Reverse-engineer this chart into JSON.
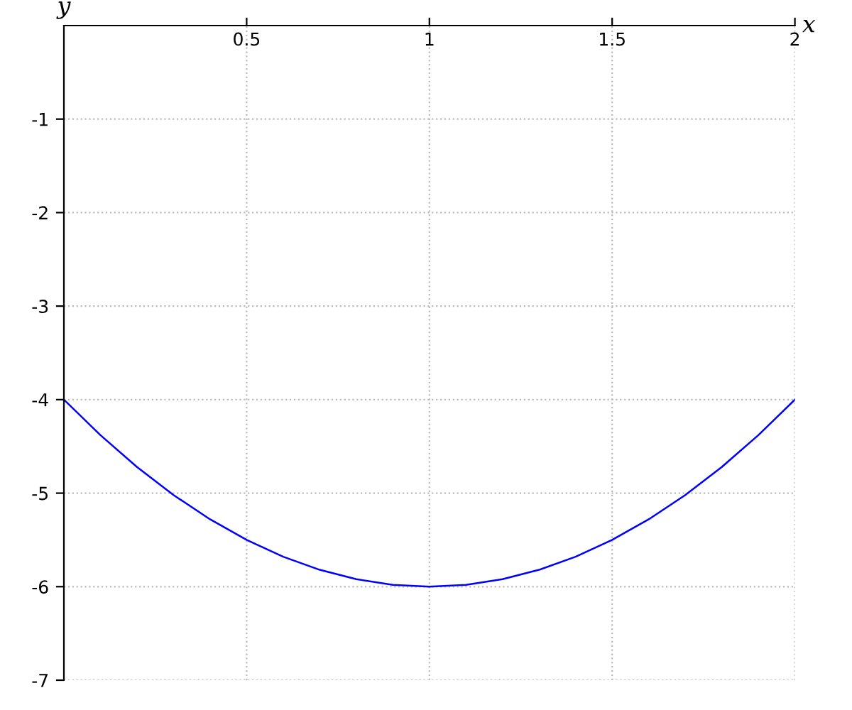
{
  "chart_data": {
    "type": "line",
    "xlabel": "x",
    "ylabel": "y",
    "x": [
      0,
      0.1,
      0.2,
      0.3,
      0.4,
      0.5,
      0.6,
      0.7,
      0.8,
      0.9,
      1,
      1.1,
      1.2,
      1.3,
      1.4,
      1.5,
      1.6,
      1.7,
      1.8,
      1.9,
      2
    ],
    "series": [
      {
        "color": "#0000ff",
        "values": [
          -4,
          -4.38,
          -4.72,
          -5.02,
          -5.28,
          -5.5,
          -5.68,
          -5.82,
          -5.92,
          -5.98,
          -6,
          -5.98,
          -5.92,
          -5.82,
          -5.68,
          -5.5,
          -5.28,
          -5.02,
          -4.72,
          -4.38,
          -4
        ]
      }
    ],
    "xlim": [
      0,
      2
    ],
    "ylim": [
      -7,
      0
    ],
    "xticks": [
      0.5,
      1,
      1.5,
      2
    ],
    "yticks": [
      -1,
      -2,
      -3,
      -4,
      -5,
      -6,
      -7
    ],
    "grid": true,
    "line_style": "solid",
    "marker": "none"
  }
}
